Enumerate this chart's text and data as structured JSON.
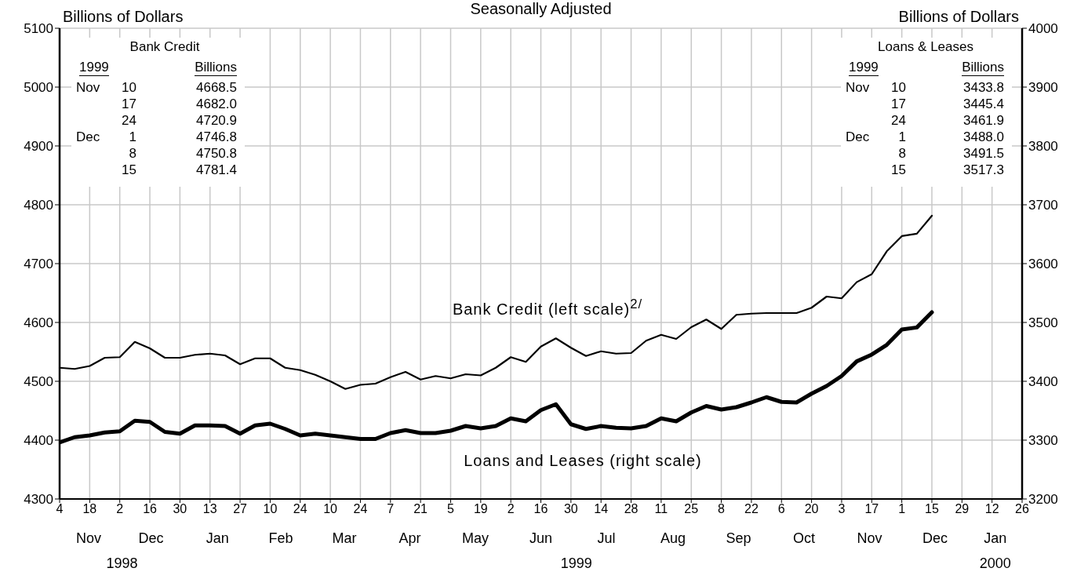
{
  "chart_data": {
    "type": "line",
    "title": "Seasonally Adjusted",
    "ylabel": "Billions of Dollars",
    "y2label": "Billions of Dollars",
    "x": [
      "1998-11-04",
      "1998-11-11",
      "1998-11-18",
      "1998-11-25",
      "1998-12-02",
      "1998-12-09",
      "1998-12-16",
      "1998-12-23",
      "1998-12-30",
      "1999-01-06",
      "1999-01-13",
      "1999-01-20",
      "1999-01-27",
      "1999-02-03",
      "1999-02-10",
      "1999-02-17",
      "1999-02-24",
      "1999-03-03",
      "1999-03-10",
      "1999-03-17",
      "1999-03-24",
      "1999-03-31",
      "1999-04-07",
      "1999-04-14",
      "1999-04-21",
      "1999-04-28",
      "1999-05-05",
      "1999-05-12",
      "1999-05-19",
      "1999-05-26",
      "1999-06-02",
      "1999-06-09",
      "1999-06-16",
      "1999-06-23",
      "1999-06-30",
      "1999-07-07",
      "1999-07-14",
      "1999-07-21",
      "1999-07-28",
      "1999-08-04",
      "1999-08-11",
      "1999-08-18",
      "1999-08-25",
      "1999-09-01",
      "1999-09-08",
      "1999-09-15",
      "1999-09-22",
      "1999-09-29",
      "1999-10-06",
      "1999-10-13",
      "1999-10-20",
      "1999-10-27",
      "1999-11-03",
      "1999-11-10",
      "1999-11-17",
      "1999-11-24",
      "1999-12-01",
      "1999-12-08",
      "1999-12-15"
    ],
    "series": [
      {
        "name": "Bank Credit (left scale)$^{2/}$",
        "color": "#000000",
        "values": [
          4523,
          4521,
          4526,
          4540,
          4541,
          4567,
          4556,
          4540,
          4540,
          4545,
          4547,
          4544,
          4529,
          4539,
          4539,
          4523,
          4519,
          4511,
          4500,
          4487,
          4494,
          4496,
          4507,
          4516,
          4503,
          4509,
          4505,
          4512,
          4510,
          4523,
          4541,
          4533,
          4559,
          4573,
          4557,
          4543,
          4551,
          4547,
          4548,
          4569,
          4579,
          4572,
          4592,
          4605,
          4589,
          4613,
          4615,
          4616,
          4616,
          4616,
          4625,
          4644,
          4641,
          4668.5,
          4682.0,
          4720.9,
          4746.8,
          4750.8,
          4781.4
        ]
      },
      {
        "name": "Loans and Leases (right scale)",
        "color": "#000000",
        "axis": "y2",
        "values": [
          3296,
          3305,
          3308,
          3313,
          3315,
          3333,
          3331,
          3314,
          3311,
          3325,
          3325,
          3324,
          3311,
          3325,
          3328,
          3319,
          3308,
          3311,
          3308,
          3305,
          3302,
          3302,
          3312,
          3317,
          3312,
          3312,
          3316,
          3324,
          3320,
          3324,
          3337,
          3332,
          3351,
          3361,
          3327,
          3319,
          3324,
          3321,
          3320,
          3324,
          3337,
          3332,
          3347,
          3358,
          3352,
          3356,
          3364,
          3373,
          3365,
          3364,
          3379,
          3392,
          3409,
          3433.8,
          3445.4,
          3461.9,
          3488.0,
          3491.5,
          3517.3
        ]
      }
    ],
    "xlim": [
      "1998-11-04",
      "2000-01-26"
    ],
    "xticks": [
      {
        "value": "1998-11-04",
        "label": "4"
      },
      {
        "value": "1998-11-18",
        "label": "18"
      },
      {
        "value": "1998-12-02",
        "label": "2"
      },
      {
        "value": "1998-12-16",
        "label": "16"
      },
      {
        "value": "1998-12-30",
        "label": "30"
      },
      {
        "value": "1999-01-13",
        "label": "13"
      },
      {
        "value": "1999-01-27",
        "label": "27"
      },
      {
        "value": "1999-02-10",
        "label": "10"
      },
      {
        "value": "1999-02-24",
        "label": "24"
      },
      {
        "value": "1999-03-10",
        "label": "10"
      },
      {
        "value": "1999-03-24",
        "label": "24"
      },
      {
        "value": "1999-04-07",
        "label": "7"
      },
      {
        "value": "1999-04-21",
        "label": "21"
      },
      {
        "value": "1999-05-05",
        "label": "5"
      },
      {
        "value": "1999-05-19",
        "label": "19"
      },
      {
        "value": "1999-06-02",
        "label": "2"
      },
      {
        "value": "1999-06-16",
        "label": "16"
      },
      {
        "value": "1999-06-30",
        "label": "30"
      },
      {
        "value": "1999-07-14",
        "label": "14"
      },
      {
        "value": "1999-07-28",
        "label": "28"
      },
      {
        "value": "1999-08-11",
        "label": "11"
      },
      {
        "value": "1999-08-25",
        "label": "25"
      },
      {
        "value": "1999-09-08",
        "label": "8"
      },
      {
        "value": "1999-09-22",
        "label": "22"
      },
      {
        "value": "1999-10-06",
        "label": "6"
      },
      {
        "value": "1999-10-20",
        "label": "20"
      },
      {
        "value": "1999-11-03",
        "label": "3"
      },
      {
        "value": "1999-11-17",
        "label": "17"
      },
      {
        "value": "1999-12-01",
        "label": "1"
      },
      {
        "value": "1999-12-15",
        "label": "15"
      },
      {
        "value": "1999-12-29",
        "label": "29"
      },
      {
        "value": "2000-01-12",
        "label": "12"
      },
      {
        "value": "2000-01-26",
        "label": "26"
      }
    ],
    "ylim": [
      4300,
      5100
    ],
    "yticks": [
      4300,
      4400,
      4500,
      4600,
      4700,
      4800,
      4900,
      5000,
      5100
    ],
    "y2lim": [
      3200,
      4000
    ],
    "y2ticks": [
      3200,
      3300,
      3400,
      3500,
      3600,
      3700,
      3800,
      3900,
      4000
    ],
    "grid": true,
    "annotations": [
      "Bank Credit",
      "1999  Billions",
      "Nov  10  4668.5",
      "17  4682.0",
      "24  4720.9",
      "Dec  1  4746.8",
      "8  4750.8",
      "15  4781.4",
      "Loans & Leases",
      "1999  Billions",
      "Nov  10  3433.8",
      "17  3445.4",
      "24  3461.9",
      "Dec  1  3488.0",
      "8  3491.5",
      "15  3517.3",
      "Nov",
      "Dec",
      "Jan",
      "Feb",
      "Mar",
      "Apr",
      "May",
      "Jun",
      "Jul",
      "Aug",
      "Sep",
      "Oct",
      "Nov",
      "Dec",
      "Jan",
      "1998",
      "1999",
      "2000"
    ]
  }
}
